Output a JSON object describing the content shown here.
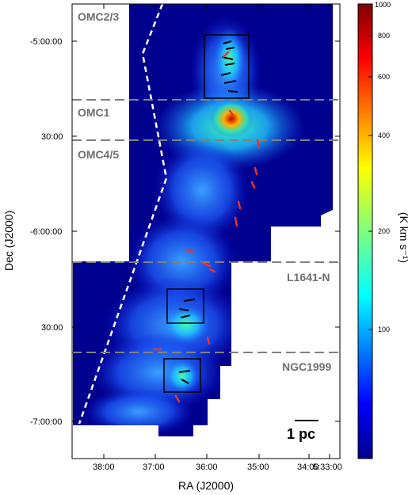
{
  "map": {
    "axes": {
      "xlabel": "RA (J2000)",
      "ylabel": "Dec (J2000)",
      "x_ticks": [
        "38:00",
        "37:00",
        "36:00",
        "35:00",
        "34:00",
        "5:33:00"
      ],
      "y_ticks": [
        "-5:00:00",
        "30:00",
        "-6:00:00",
        "30:00",
        "-7:00:00"
      ]
    },
    "regions": [
      "OMC2/3",
      "OMC1",
      "OMC4/5",
      "L1641-N",
      "NGC1999"
    ],
    "scale_bar": "1 pc",
    "colorbar": {
      "title": "(K km s⁻¹)",
      "labels": [
        "1000",
        "800",
        "600",
        "400",
        "200",
        "100"
      ],
      "scale": "log"
    },
    "colors": {
      "background_map": "#00008f",
      "divider": "#808080",
      "boundary": "#ffffff",
      "vectors": "#e8352a",
      "box": "#000000"
    }
  }
}
